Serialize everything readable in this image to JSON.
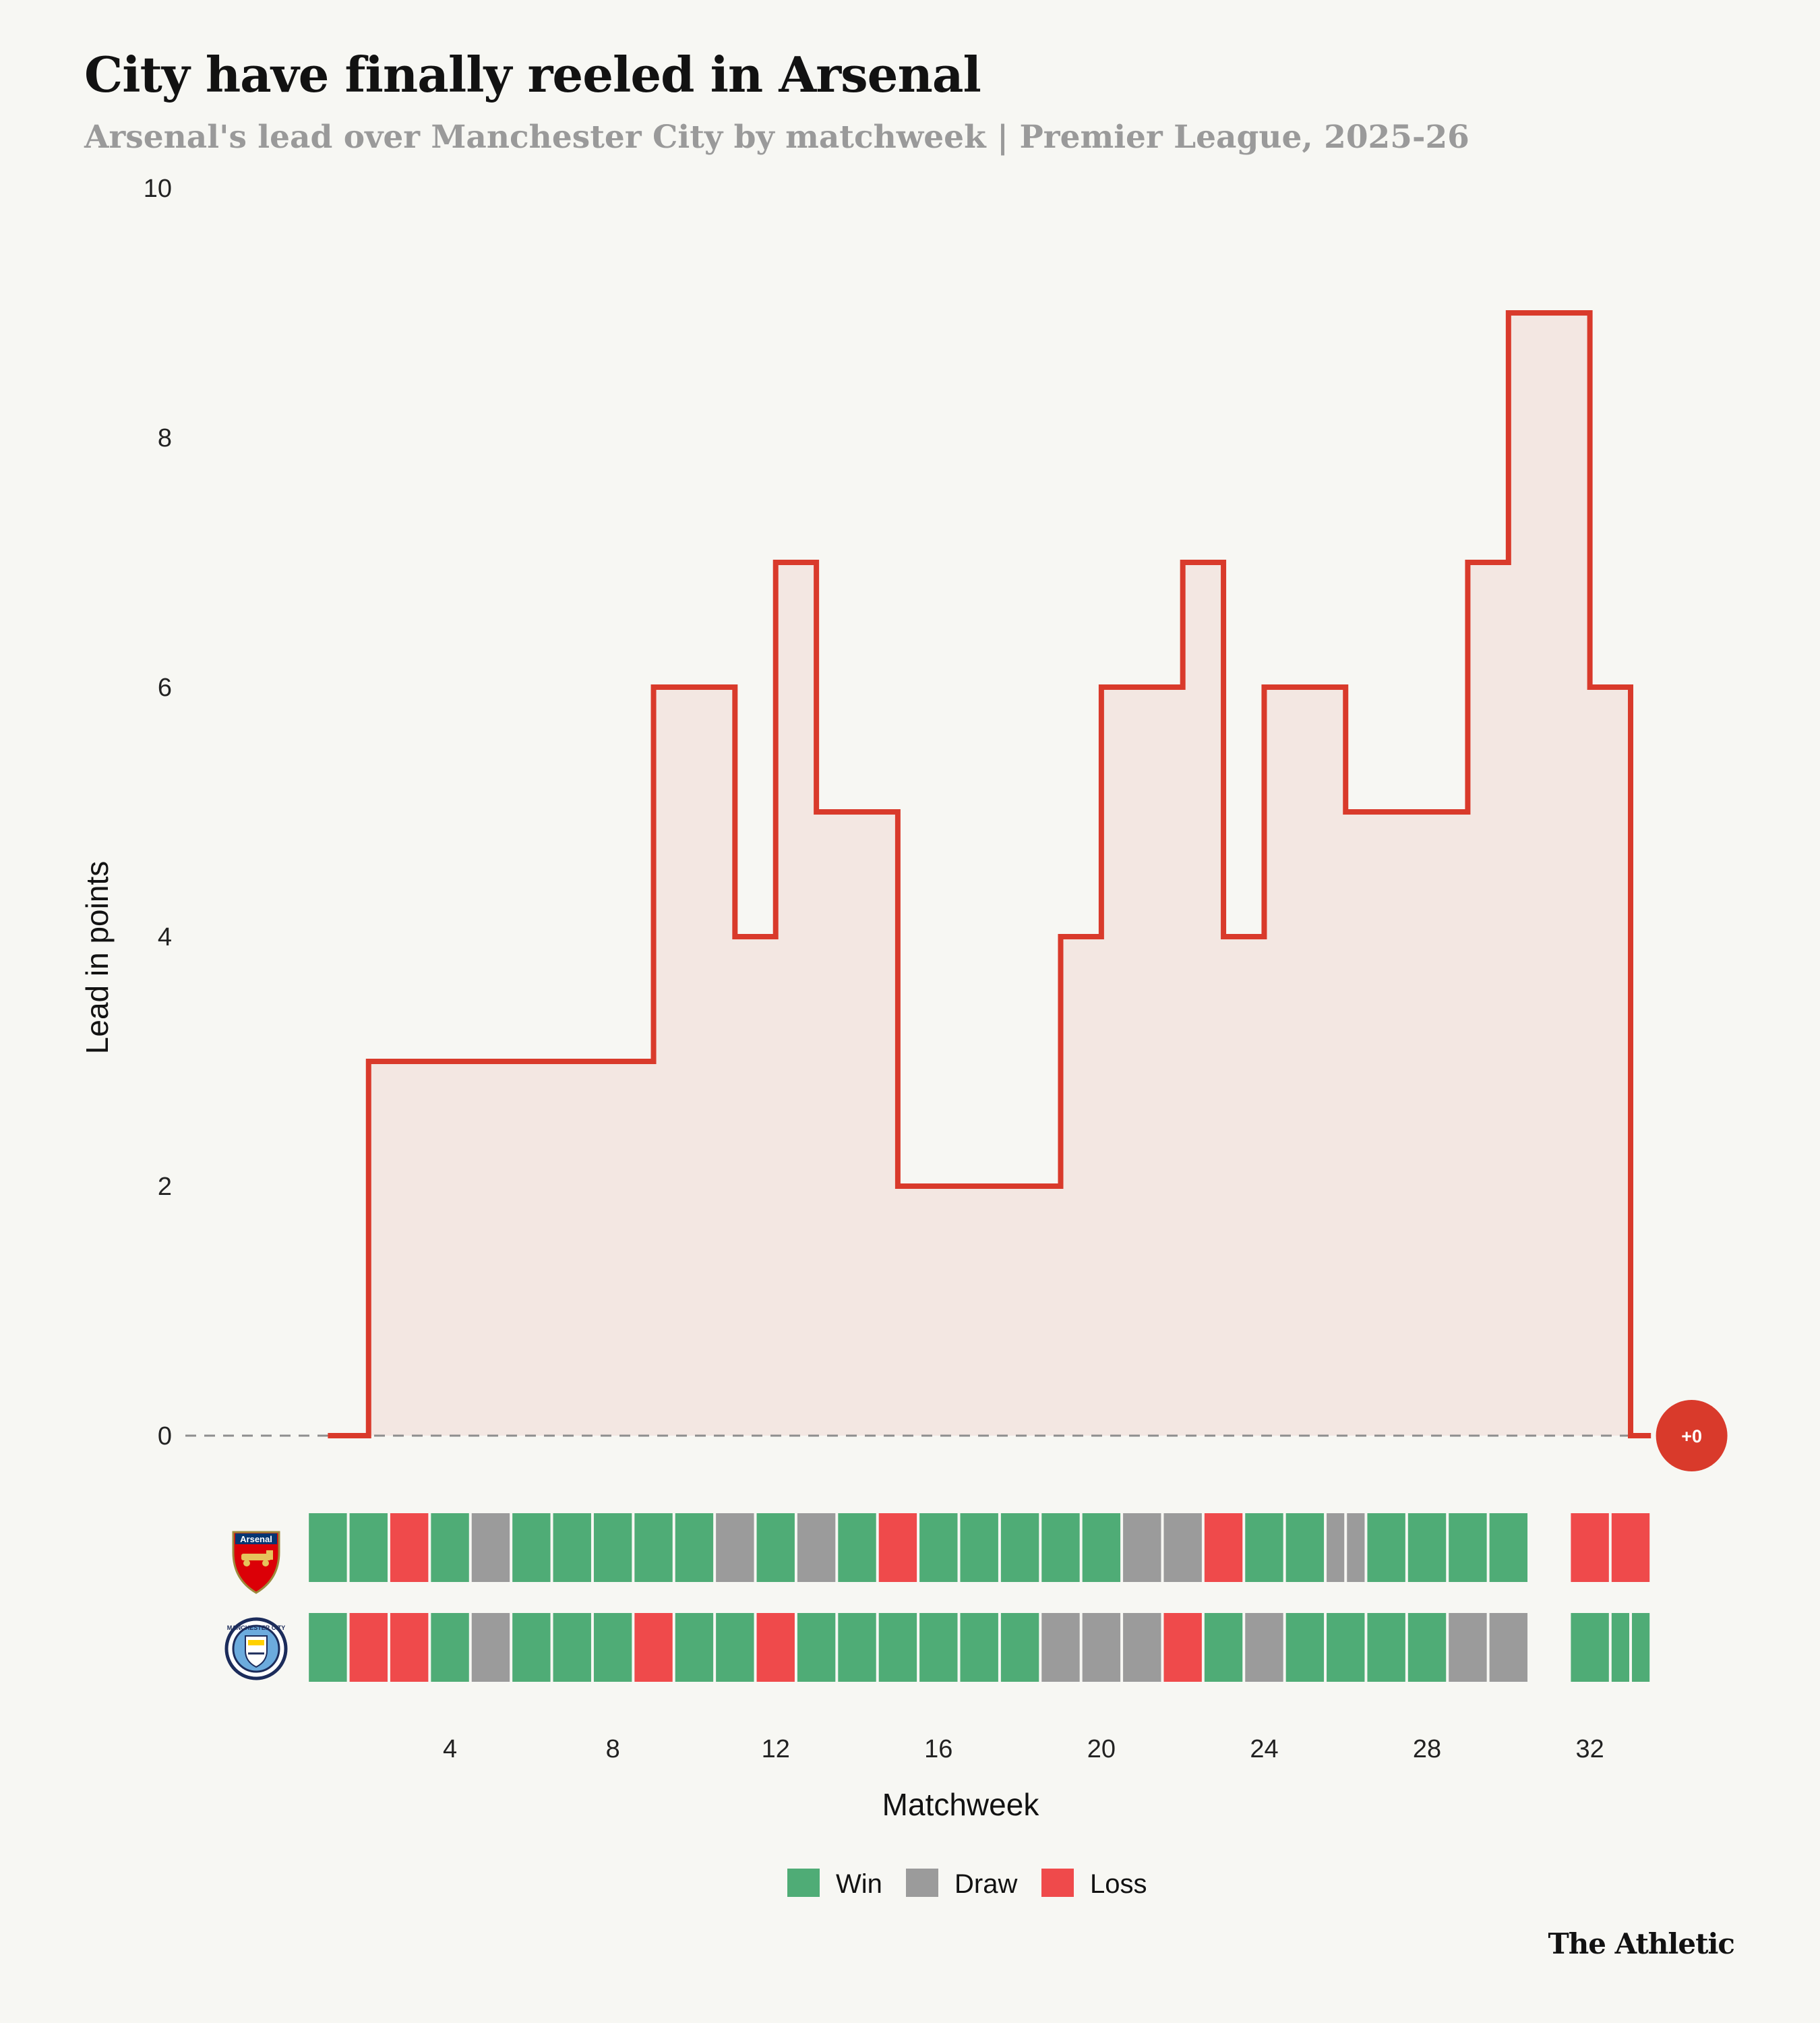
{
  "header": {
    "title": "City have finally reeled in Arsenal",
    "subtitle": "Arsenal's lead over Manchester City by matchweek | Premier League, 2025-26"
  },
  "footer": {
    "credit": "The Athletic"
  },
  "colors": {
    "background": "#f7f7f3",
    "line": "#d93a2b",
    "fill": "#f3e7e2",
    "win": "#4fac76",
    "draw": "#9b9b9b",
    "loss": "#ef4a4b",
    "zero_line": "#8e8e8e",
    "badge": "#d93a2b"
  },
  "chart_data": {
    "type": "area",
    "subtype": "step",
    "title": "City have finally reeled in Arsenal",
    "subtitle": "Arsenal's lead over Manchester City by matchweek | Premier League, 2025-26",
    "xlabel": "Matchweek",
    "ylabel": "Lead in points",
    "x": [
      1,
      2,
      3,
      4,
      5,
      6,
      7,
      8,
      9,
      10,
      11,
      12,
      13,
      14,
      15,
      16,
      17,
      18,
      19,
      20,
      21,
      22,
      23,
      24,
      25,
      26,
      27,
      28,
      29,
      30,
      31,
      32,
      33
    ],
    "series": [
      {
        "name": "Arsenal lead",
        "values": [
          0,
          3,
          3,
          3,
          3,
          3,
          3,
          3,
          6,
          6,
          4,
          7,
          5,
          5,
          2,
          2,
          2,
          2,
          4,
          6,
          6,
          7,
          4,
          6,
          6,
          5,
          5,
          5,
          7,
          9,
          9,
          6,
          0
        ]
      }
    ],
    "ylim": [
      0,
      10
    ],
    "xlim": [
      -2.5,
      35.5
    ],
    "y_ticks": [
      0,
      2,
      4,
      6,
      8,
      10
    ],
    "x_ticks": [
      4,
      8,
      12,
      16,
      20,
      24,
      28,
      32
    ],
    "grid": false,
    "zero_line": "dashed",
    "end_label": "+0",
    "results": [
      {
        "team": "Arsenal",
        "logo_text": "Arsenal",
        "matches": [
          {
            "mw": 1,
            "result": "W"
          },
          {
            "mw": 2,
            "result": "W"
          },
          {
            "mw": 3,
            "result": "L"
          },
          {
            "mw": 4,
            "result": "W"
          },
          {
            "mw": 5,
            "result": "D"
          },
          {
            "mw": 6,
            "result": "W"
          },
          {
            "mw": 7,
            "result": "W"
          },
          {
            "mw": 8,
            "result": "W"
          },
          {
            "mw": 9,
            "result": "W"
          },
          {
            "mw": 10,
            "result": "W"
          },
          {
            "mw": 11,
            "result": "D"
          },
          {
            "mw": 12,
            "result": "W"
          },
          {
            "mw": 13,
            "result": "D"
          },
          {
            "mw": 14,
            "result": "W"
          },
          {
            "mw": 15,
            "result": "L"
          },
          {
            "mw": 16,
            "result": "W"
          },
          {
            "mw": 17,
            "result": "W"
          },
          {
            "mw": 18,
            "result": "W"
          },
          {
            "mw": 19,
            "result": "W"
          },
          {
            "mw": 20,
            "result": "W"
          },
          {
            "mw": 21,
            "result": "D"
          },
          {
            "mw": 22,
            "result": "D"
          },
          {
            "mw": 23,
            "result": "L"
          },
          {
            "mw": 24,
            "result": "W"
          },
          {
            "mw": 25,
            "result": "W"
          },
          {
            "mw": 26,
            "result": "D"
          },
          {
            "mw": 26,
            "result": "D"
          },
          {
            "mw": 27,
            "result": "W"
          },
          {
            "mw": 28,
            "result": "W"
          },
          {
            "mw": 29,
            "result": "W"
          },
          {
            "mw": 30,
            "result": "W"
          },
          {
            "mw": 32,
            "result": "L"
          },
          {
            "mw": 33,
            "result": "L"
          }
        ]
      },
      {
        "team": "Manchester City",
        "logo_text": "MANCHESTER CITY",
        "matches": [
          {
            "mw": 1,
            "result": "W"
          },
          {
            "mw": 2,
            "result": "L"
          },
          {
            "mw": 3,
            "result": "L"
          },
          {
            "mw": 4,
            "result": "W"
          },
          {
            "mw": 5,
            "result": "D"
          },
          {
            "mw": 6,
            "result": "W"
          },
          {
            "mw": 7,
            "result": "W"
          },
          {
            "mw": 8,
            "result": "W"
          },
          {
            "mw": 9,
            "result": "L"
          },
          {
            "mw": 10,
            "result": "W"
          },
          {
            "mw": 11,
            "result": "W"
          },
          {
            "mw": 12,
            "result": "L"
          },
          {
            "mw": 13,
            "result": "W"
          },
          {
            "mw": 14,
            "result": "W"
          },
          {
            "mw": 15,
            "result": "W"
          },
          {
            "mw": 16,
            "result": "W"
          },
          {
            "mw": 17,
            "result": "W"
          },
          {
            "mw": 18,
            "result": "W"
          },
          {
            "mw": 19,
            "result": "D"
          },
          {
            "mw": 20,
            "result": "D"
          },
          {
            "mw": 21,
            "result": "D"
          },
          {
            "mw": 22,
            "result": "L"
          },
          {
            "mw": 23,
            "result": "W"
          },
          {
            "mw": 24,
            "result": "D"
          },
          {
            "mw": 25,
            "result": "W"
          },
          {
            "mw": 26,
            "result": "W"
          },
          {
            "mw": 27,
            "result": "W"
          },
          {
            "mw": 28,
            "result": "W"
          },
          {
            "mw": 29,
            "result": "D"
          },
          {
            "mw": 30,
            "result": "D"
          },
          {
            "mw": 32,
            "result": "W"
          },
          {
            "mw": 33,
            "result": "W"
          },
          {
            "mw": 33,
            "result": "W"
          }
        ]
      }
    ],
    "legend": [
      {
        "label": "Win",
        "key": "win"
      },
      {
        "label": "Draw",
        "key": "draw"
      },
      {
        "label": "Loss",
        "key": "loss"
      }
    ]
  }
}
